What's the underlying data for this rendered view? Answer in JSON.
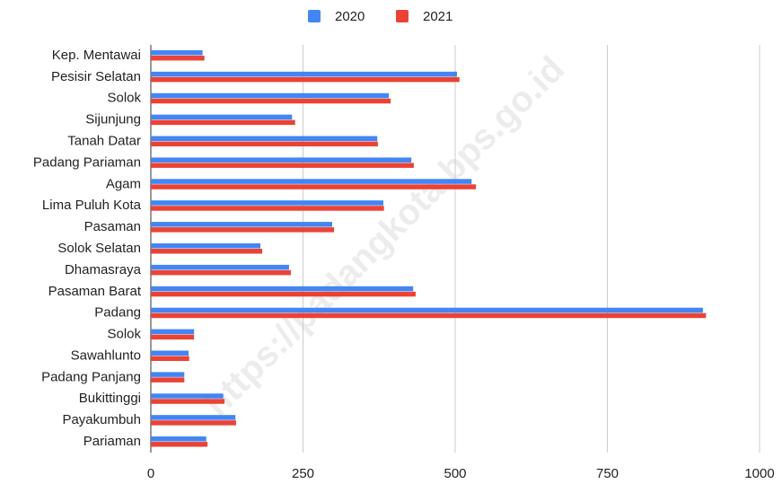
{
  "chart_data": {
    "type": "barh",
    "categories": [
      "Kep. Mentawai",
      "Pesisir Selatan",
      "Solok",
      "Sijunjung",
      "Tanah Datar",
      "Padang Pariaman",
      "Agam",
      "Lima Puluh Kota",
      "Pasaman",
      "Solok Selatan",
      "Dhamasraya",
      "Pasaman Barat",
      "Padang",
      "Solok",
      "Sawahlunto",
      "Padang Panjang",
      "Bukittinggi",
      "Payakumbuh",
      "Pariaman"
    ],
    "series": [
      {
        "name": "2020",
        "color": "#4285f4",
        "values": [
          85,
          503,
          391,
          232,
          372,
          428,
          527,
          382,
          298,
          180,
          227,
          431,
          907,
          71,
          62,
          55,
          119,
          139,
          91
        ]
      },
      {
        "name": "2021",
        "color": "#ea4335",
        "values": [
          88,
          507,
          394,
          237,
          373,
          432,
          534,
          383,
          301,
          183,
          230,
          435,
          912,
          71,
          63,
          55,
          121,
          140,
          93
        ]
      }
    ],
    "xlim": [
      0,
      1000
    ],
    "xticks": [
      0,
      250,
      500,
      750,
      1000
    ],
    "grid": true,
    "legend": "top",
    "watermark": "https://padangkota.bps.go.id"
  }
}
